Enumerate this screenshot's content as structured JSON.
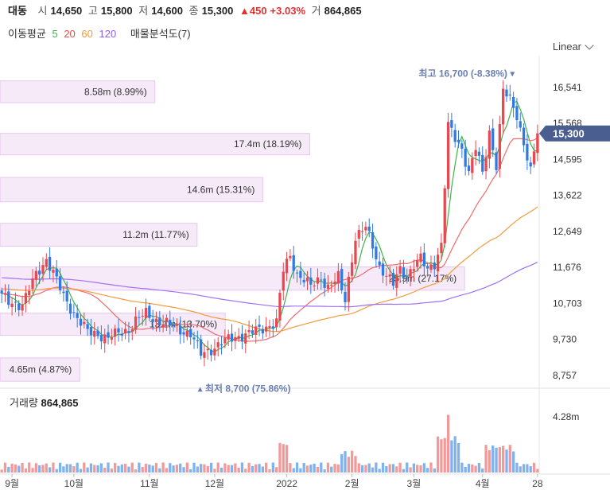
{
  "header": {
    "name": "대동",
    "open_label": "시",
    "open": "14,650",
    "high_label": "고",
    "high": "15,800",
    "low_label": "저",
    "low": "14,600",
    "close_label": "종",
    "close": "15,300",
    "change": "▲450",
    "change_pct": "+3.03%",
    "volume_label": "거",
    "volume": "864,865"
  },
  "ma_row": {
    "label": "이동평균",
    "periods": [
      "5",
      "20",
      "60",
      "120"
    ],
    "colors": [
      "#3db54a",
      "#ef4b4b",
      "#f39a3c",
      "#8b5cf6"
    ],
    "volume_profile_label": "매물분석도(7)"
  },
  "scale_button": {
    "label": "Linear"
  },
  "chart_data": {
    "type": "candlestick",
    "y_ticks": [
      "16,541",
      "15,568",
      "14,595",
      "13,622",
      "12,649",
      "11,676",
      "10,703",
      "9,730",
      "8,757"
    ],
    "y_tick_values": [
      16541,
      15568,
      14595,
      13622,
      12649,
      11676,
      10703,
      9730,
      8757
    ],
    "ylim": [
      8540,
      17100
    ],
    "x_labels": [
      "9월",
      "10월",
      "11월",
      "12월",
      "2022",
      "2월",
      "3월",
      "4월",
      "28"
    ],
    "last_price": "15,300",
    "last_price_value": 15300,
    "max_annotation": {
      "text": "최고 16,700 (-8.38%) ▾",
      "value": 16700
    },
    "min_annotation": {
      "text": "▴ 최저 8,700 (75.86%)",
      "value": 8700
    },
    "volume_profile": [
      {
        "label": "8.58m (8.99%)",
        "low": 16130,
        "high": 16720,
        "frac": 0.33
      },
      {
        "label": "17.4m (18.19%)",
        "low": 14720,
        "high": 15300,
        "frac": 0.66
      },
      {
        "label": "14.6m (15.31%)",
        "low": 13450,
        "high": 14110,
        "frac": 0.56
      },
      {
        "label": "11.2m (11.77%)",
        "low": 12250,
        "high": 12870,
        "frac": 0.42
      },
      {
        "label": "25.9m (27.17%)",
        "low": 11060,
        "high": 11690,
        "frac": 0.99
      },
      {
        "label": "13.1m (13.70%)",
        "low": 9840,
        "high": 10440,
        "frac": 0.48
      },
      {
        "label": "4.65m (4.87%)",
        "low": 8600,
        "high": 9230,
        "frac": 0.17
      }
    ],
    "volume_panel": {
      "label": "거래량",
      "value": "864,865",
      "y_tick": "4.28m",
      "up_color": "#f29a9a",
      "down_color": "#7fb2ef"
    },
    "waypoints": [
      [
        0,
        10900
      ],
      [
        2,
        10760
      ],
      [
        6,
        10650
      ],
      [
        10,
        11500
      ],
      [
        13,
        11900
      ],
      [
        15,
        11520
      ],
      [
        18,
        10900
      ],
      [
        22,
        10300
      ],
      [
        25,
        9930
      ],
      [
        28,
        9880
      ],
      [
        31,
        9760
      ],
      [
        34,
        9900
      ],
      [
        37,
        10000
      ],
      [
        39,
        10230
      ],
      [
        42,
        10430
      ],
      [
        45,
        10250
      ],
      [
        48,
        10150
      ],
      [
        51,
        10030
      ],
      [
        55,
        9880
      ],
      [
        58,
        9330
      ],
      [
        61,
        9470
      ],
      [
        63,
        9580
      ],
      [
        66,
        9730
      ],
      [
        69,
        9820
      ],
      [
        72,
        9890
      ],
      [
        76,
        10030
      ],
      [
        80,
        10200
      ],
      [
        82,
        11600
      ],
      [
        84,
        11990
      ],
      [
        86,
        11500
      ],
      [
        88,
        11350
      ],
      [
        90,
        11150
      ],
      [
        93,
        11400
      ],
      [
        95,
        11150
      ],
      [
        98,
        11400
      ],
      [
        99,
        11050
      ],
      [
        100,
        10800
      ],
      [
        103,
        12500
      ],
      [
        106,
        12750
      ],
      [
        108,
        12250
      ],
      [
        110,
        11700
      ],
      [
        112,
        11480
      ],
      [
        114,
        11200
      ],
      [
        116,
        11600
      ],
      [
        118,
        11450
      ],
      [
        120,
        11750
      ],
      [
        122,
        11900
      ],
      [
        124,
        11600
      ],
      [
        126,
        11800
      ],
      [
        128,
        12300
      ],
      [
        130,
        15500
      ],
      [
        132,
        15150
      ],
      [
        134,
        14900
      ],
      [
        136,
        14250
      ],
      [
        138,
        14900
      ],
      [
        140,
        14200
      ],
      [
        142,
        15350
      ],
      [
        144,
        14450
      ],
      [
        146,
        16450
      ],
      [
        148,
        16200
      ],
      [
        150,
        15800
      ],
      [
        152,
        15050
      ],
      [
        154,
        14250
      ],
      [
        156,
        15300
      ]
    ],
    "ma_lines": [
      {
        "name": "5",
        "color": "#3db54a",
        "period": 5
      },
      {
        "name": "20",
        "color": "#ef6b6b",
        "period": 20
      },
      {
        "name": "60",
        "color": "#f39a3c",
        "period": 60
      },
      {
        "name": "120",
        "color": "#a070f0",
        "period": 120
      }
    ]
  }
}
